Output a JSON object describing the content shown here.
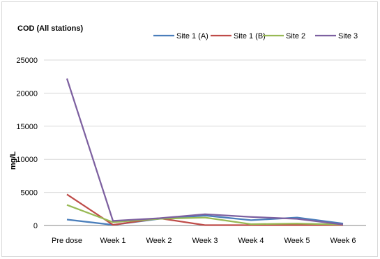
{
  "chart_data": {
    "type": "line",
    "title": "COD (All stations)",
    "xlabel": "",
    "ylabel": "mg/L",
    "ylim": [
      0,
      25000
    ],
    "yticks": [
      "0",
      "5000",
      "10000",
      "15000",
      "20000",
      "25000"
    ],
    "grid": true,
    "legend_position": "top-right",
    "categories": [
      "Pre dose",
      "Week 1",
      "Week 2",
      "Week 3",
      "Week 4",
      "Week 5",
      "Week 6"
    ],
    "series": [
      {
        "name": "Site 1 (A)",
        "color": "#4a7ebb",
        "values": [
          900,
          100,
          1000,
          1500,
          800,
          1200,
          300
        ]
      },
      {
        "name": "Site 1 (B)",
        "color": "#be4b48",
        "values": [
          4700,
          100,
          1100,
          50,
          50,
          50,
          50
        ]
      },
      {
        "name": "Site 2",
        "color": "#98b954",
        "values": [
          3100,
          500,
          1000,
          1200,
          200,
          300,
          150
        ]
      },
      {
        "name": "Site 3",
        "color": "#7d60a0",
        "values": [
          22200,
          700,
          1100,
          1700,
          1300,
          1000,
          150
        ]
      }
    ]
  }
}
